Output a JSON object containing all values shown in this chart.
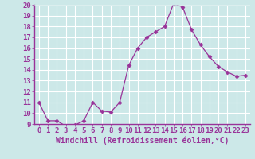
{
  "x": [
    0,
    1,
    2,
    3,
    4,
    5,
    6,
    7,
    8,
    9,
    10,
    11,
    12,
    13,
    14,
    15,
    16,
    17,
    18,
    19,
    20,
    21,
    22,
    23
  ],
  "y": [
    11,
    9.3,
    9.3,
    8.8,
    8.9,
    9.3,
    11,
    10.2,
    10.1,
    11,
    14.4,
    16.0,
    17.0,
    17.5,
    18.0,
    20.1,
    19.8,
    17.7,
    16.3,
    15.2,
    14.3,
    13.8,
    13.4,
    13.5
  ],
  "line_color": "#993399",
  "marker": "D",
  "marker_size": 2.5,
  "bg_color": "#cce8e8",
  "grid_color": "#ffffff",
  "xlabel": "Windchill (Refroidissement éolien,°C)",
  "xlabel_fontsize": 7,
  "tick_fontsize": 6.5,
  "ylim": [
    9,
    20
  ],
  "yticks": [
    9,
    10,
    11,
    12,
    13,
    14,
    15,
    16,
    17,
    18,
    19,
    20
  ],
  "xlim": [
    -0.5,
    23.5
  ],
  "xticks": [
    0,
    1,
    2,
    3,
    4,
    5,
    6,
    7,
    8,
    9,
    10,
    11,
    12,
    13,
    14,
    15,
    16,
    17,
    18,
    19,
    20,
    21,
    22,
    23
  ],
  "spine_color": "#993399",
  "bottom_spine_color": "#993399"
}
